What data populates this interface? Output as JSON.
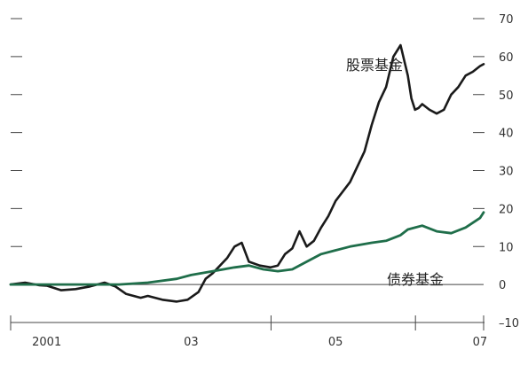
{
  "chart_data": {
    "type": "line",
    "title": "",
    "xlabel": "",
    "ylabel": "",
    "x_tick_labels": [
      "2001",
      "03",
      "05",
      "07"
    ],
    "x_tick_positions": [
      2001,
      2003,
      2005,
      2007
    ],
    "xlim": [
      2000.5,
      2007.05
    ],
    "ylim": [
      -10,
      70
    ],
    "y_ticks": [
      -10,
      0,
      10,
      20,
      30,
      40,
      50,
      60,
      70
    ],
    "y_tick_labels": [
      "–10",
      "0",
      "10",
      "20",
      "30",
      "40",
      "50",
      "60",
      "70"
    ],
    "zero_line": true,
    "grid": false,
    "legend": "inline labels",
    "series": [
      {
        "name": "股票基金",
        "color": "#1a1a1a",
        "x": [
          2000.5,
          2000.7,
          2000.9,
          2001.0,
          2001.2,
          2001.4,
          2001.6,
          2001.8,
          2001.95,
          2002.1,
          2002.3,
          2002.4,
          2002.6,
          2002.8,
          2002.95,
          2003.1,
          2003.2,
          2003.3,
          2003.4,
          2003.5,
          2003.6,
          2003.7,
          2003.8,
          2003.95,
          2004.1,
          2004.2,
          2004.3,
          2004.4,
          2004.5,
          2004.6,
          2004.7,
          2004.8,
          2004.9,
          2005.0,
          2005.2,
          2005.4,
          2005.5,
          2005.6,
          2005.7,
          2005.8,
          2005.9,
          2006.0,
          2006.05,
          2006.1,
          2006.15,
          2006.2,
          2006.3,
          2006.4,
          2006.5,
          2006.6,
          2006.7,
          2006.8,
          2006.9,
          2007.0,
          2007.05
        ],
        "values": [
          0,
          0.5,
          -0.2,
          -0.3,
          -1.5,
          -1.2,
          -0.5,
          0.5,
          -0.5,
          -2.5,
          -3.5,
          -3.0,
          -4.0,
          -4.5,
          -4.0,
          -2.0,
          1.5,
          3.0,
          5.0,
          7.0,
          10.0,
          11.0,
          6.0,
          5.0,
          4.5,
          5.0,
          8.0,
          9.5,
          14.0,
          10.0,
          11.5,
          15.0,
          18.0,
          22.0,
          27.0,
          35.0,
          42.0,
          48.0,
          52.0,
          60.0,
          63.0,
          55.0,
          49.0,
          46.0,
          46.5,
          47.5,
          46.0,
          45.0,
          46.0,
          50.0,
          52.0,
          55.0,
          56.0,
          57.5,
          58.0
        ]
      },
      {
        "name": "债券基金",
        "color": "#1f6e4a",
        "x": [
          2000.5,
          2000.8,
          2001.2,
          2001.6,
          2002.0,
          2002.4,
          2002.8,
          2003.0,
          2003.3,
          2003.6,
          2003.8,
          2004.0,
          2004.2,
          2004.4,
          2004.6,
          2004.8,
          2005.0,
          2005.2,
          2005.5,
          2005.7,
          2005.9,
          2006.0,
          2006.2,
          2006.4,
          2006.6,
          2006.8,
          2007.0,
          2007.05
        ],
        "values": [
          0,
          0,
          0,
          0,
          0,
          0.5,
          1.5,
          2.5,
          3.5,
          4.5,
          5.0,
          4.0,
          3.5,
          4.0,
          6.0,
          8.0,
          9.0,
          10.0,
          11.0,
          11.5,
          13.0,
          14.5,
          15.5,
          14.0,
          13.5,
          15.0,
          17.5,
          19.0
        ]
      }
    ]
  }
}
